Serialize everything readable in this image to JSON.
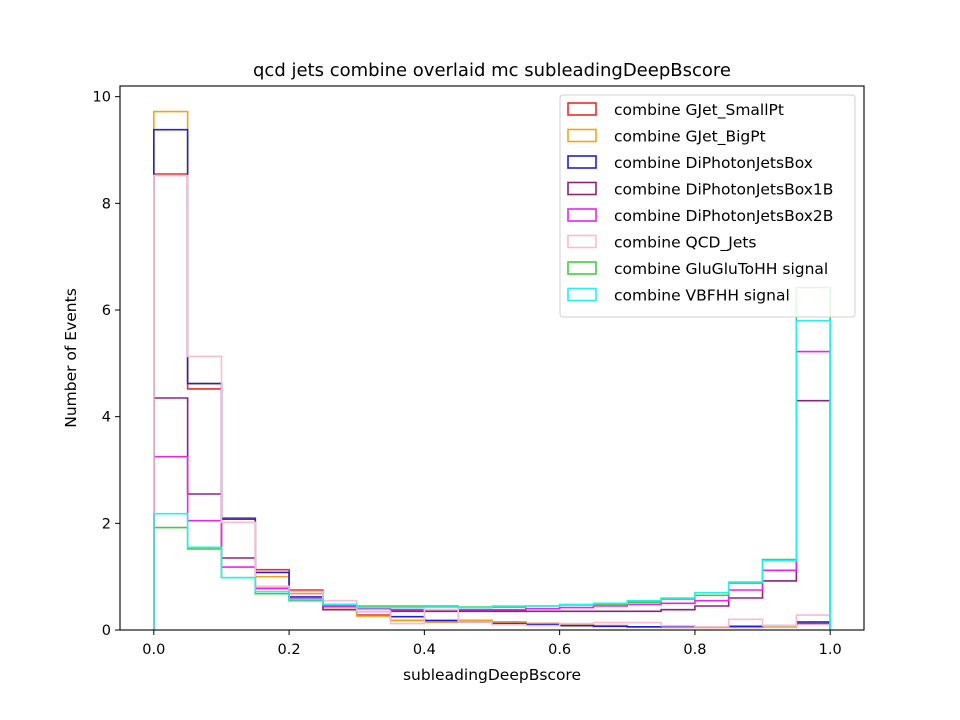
{
  "chart_data": {
    "type": "histogram",
    "title": "qcd jets combine overlaid mc subleadingDeepBscore",
    "xlabel": "subleadingDeepBscore",
    "ylabel": "Number of Events",
    "xlim": [
      -0.05,
      1.05
    ],
    "ylim": [
      0,
      10.2
    ],
    "x_ticks": [
      "0.0",
      "0.2",
      "0.4",
      "0.6",
      "0.8",
      "1.0"
    ],
    "y_ticks": [
      "0",
      "2",
      "4",
      "6",
      "8",
      "10"
    ],
    "grid": false,
    "legend_position": "top-right",
    "bin_edges": [
      0.0,
      0.05,
      0.1,
      0.15,
      0.2,
      0.25,
      0.3,
      0.35,
      0.4,
      0.45,
      0.5,
      0.55,
      0.6,
      0.65,
      0.7,
      0.75,
      0.8,
      0.85,
      0.9,
      0.95,
      1.0
    ],
    "series": [
      {
        "name": "combine GJet_SmallPt",
        "color": "#ee2a2a",
        "values": [
          8.55,
          4.52,
          2.1,
          1.13,
          0.75,
          0.45,
          0.28,
          0.18,
          0.15,
          0.18,
          0.15,
          0.12,
          0.1,
          0.08,
          0.06,
          0.05,
          0.05,
          0.05,
          0.06,
          0.12
        ]
      },
      {
        "name": "combine GJet_BigPt",
        "color": "#f2a51c",
        "values": [
          9.72,
          4.62,
          2.08,
          1.0,
          0.68,
          0.42,
          0.26,
          0.18,
          0.15,
          0.18,
          0.15,
          0.12,
          0.1,
          0.08,
          0.06,
          0.05,
          0.05,
          0.05,
          0.06,
          0.15
        ]
      },
      {
        "name": "combine DiPhotonJetsBox",
        "color": "#2020d8",
        "values": [
          9.38,
          4.62,
          2.08,
          1.08,
          0.62,
          0.45,
          0.35,
          0.25,
          0.18,
          0.15,
          0.12,
          0.1,
          0.08,
          0.07,
          0.06,
          0.07,
          0.06,
          0.07,
          0.08,
          0.15
        ]
      },
      {
        "name": "combine DiPhotonJetsBox1B",
        "color": "#8e237e",
        "values": [
          4.35,
          2.55,
          1.35,
          0.78,
          0.58,
          0.38,
          0.35,
          0.35,
          0.35,
          0.35,
          0.35,
          0.35,
          0.35,
          0.35,
          0.35,
          0.38,
          0.45,
          0.6,
          0.92,
          4.3
        ]
      },
      {
        "name": "combine DiPhotonJetsBox2B",
        "color": "#ea25ea",
        "values": [
          3.25,
          2.05,
          1.18,
          0.78,
          0.58,
          0.45,
          0.4,
          0.38,
          0.38,
          0.38,
          0.38,
          0.4,
          0.42,
          0.45,
          0.48,
          0.5,
          0.55,
          0.75,
          1.12,
          5.22
        ]
      },
      {
        "name": "combine QCD_Jets",
        "color": "#f6bcd2",
        "values": [
          8.52,
          5.13,
          2.02,
          0.82,
          0.72,
          0.55,
          0.35,
          0.12,
          0.38,
          0.15,
          0.1,
          0.08,
          0.12,
          0.14,
          0.14,
          0.08,
          0.06,
          0.2,
          0.08,
          0.28
        ]
      },
      {
        "name": "combine GluGluToHH signal",
        "color": "#44cc44",
        "values": [
          1.92,
          1.52,
          0.98,
          0.68,
          0.55,
          0.48,
          0.45,
          0.45,
          0.45,
          0.43,
          0.43,
          0.45,
          0.47,
          0.48,
          0.52,
          0.58,
          0.65,
          0.88,
          1.32,
          6.42
        ]
      },
      {
        "name": "combine VBFHH signal",
        "color": "#22f2f2",
        "values": [
          2.18,
          1.55,
          0.98,
          0.72,
          0.57,
          0.48,
          0.42,
          0.42,
          0.43,
          0.42,
          0.45,
          0.45,
          0.48,
          0.5,
          0.55,
          0.6,
          0.7,
          0.9,
          1.3,
          5.8
        ]
      }
    ]
  }
}
